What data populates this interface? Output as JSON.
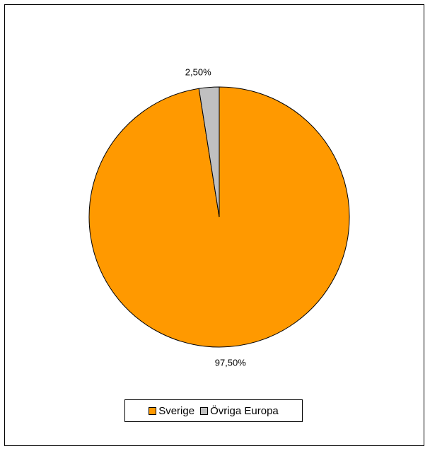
{
  "chart_data": {
    "type": "pie",
    "categories": [
      "Sverige",
      "Övriga Europa"
    ],
    "values": [
      97.5,
      2.5
    ],
    "data_labels": [
      "97,50%",
      "2,50%"
    ],
    "colors": [
      "#FF9900",
      "#C0C0C0"
    ],
    "start_angle_deg": 0,
    "direction": "clockwise-from-top",
    "legend_placement": "bottom",
    "legend": [
      "Sverige",
      "Övriga Europa"
    ]
  }
}
